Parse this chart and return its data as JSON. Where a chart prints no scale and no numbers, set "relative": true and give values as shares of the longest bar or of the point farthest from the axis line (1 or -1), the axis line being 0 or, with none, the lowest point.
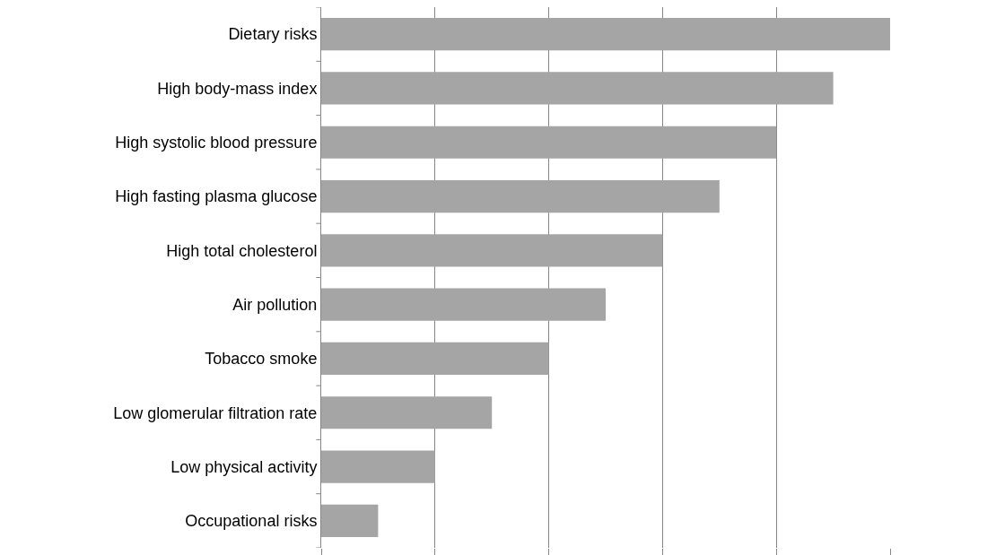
{
  "chart_data": {
    "type": "bar",
    "orientation": "horizontal",
    "relative": true,
    "grid": "x",
    "color": "#a5a5a5",
    "categories": [
      "Dietary risks",
      "High body-mass index",
      "High systolic blood pressure",
      "High fasting plasma glucose",
      "High total cholesterol",
      "Air pollution",
      "Tobacco smoke",
      "Low glomerular filtration rate",
      "Low physical activity",
      "Occupational risks"
    ],
    "values": [
      1.0,
      0.9,
      0.8,
      0.7,
      0.6,
      0.5,
      0.4,
      0.3,
      0.2,
      0.1
    ]
  }
}
